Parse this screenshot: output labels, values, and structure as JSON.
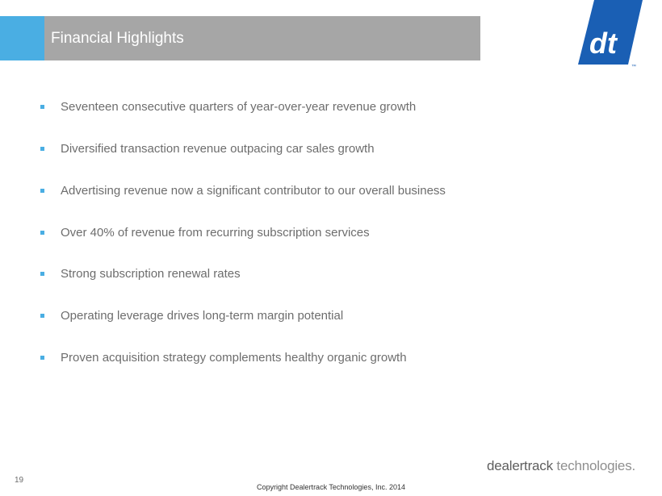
{
  "header": {
    "title": "Financial Highlights",
    "accent_color": "#4aaee3",
    "bar_color": "#a6a6a6"
  },
  "logo": {
    "icon": "dt-logo-icon",
    "text": "dt",
    "trademark": "™",
    "color": "#1a5fb4"
  },
  "bullets": {
    "marker_color": "#4aaee3",
    "items": [
      "Seventeen consecutive quarters of year-over-year revenue growth",
      "Diversified transaction revenue outpacing car sales growth",
      "Advertising revenue now a significant contributor to our overall business",
      "Over 40% of revenue from recurring subscription services",
      "Strong subscription renewal rates",
      "Operating leverage drives long-term margin potential",
      "Proven acquisition strategy complements healthy organic growth"
    ]
  },
  "footer": {
    "page_number": "19",
    "copyright": "Copyright Dealertrack Technologies, Inc. 2014",
    "brand_part1": "dealertrack",
    "brand_part2": " technologies",
    "brand_dot": "."
  }
}
